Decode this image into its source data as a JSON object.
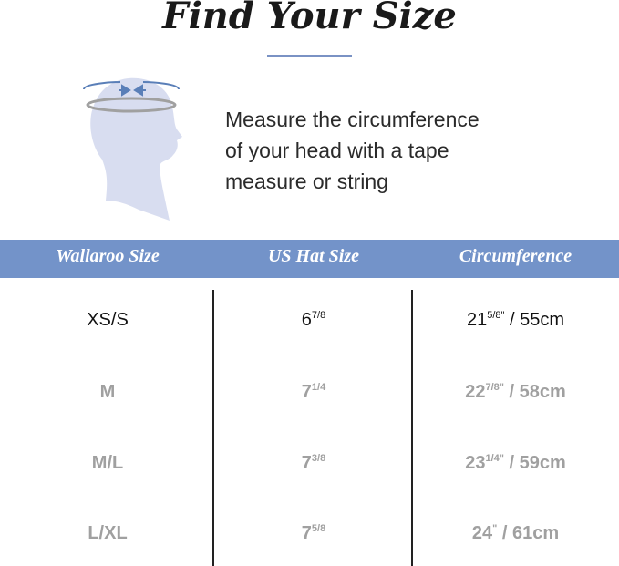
{
  "title": "Find Your Size",
  "instruction": [
    "Measure the circumference",
    "of your head with a tape",
    "measure or string"
  ],
  "colors": {
    "accent": "#7393c9",
    "muted_text": "#a0a0a0"
  },
  "icon": "head-measurement-icon",
  "table": {
    "headers": [
      "Wallaroo Size",
      "US Hat Size",
      "Circumference"
    ],
    "rows": [
      {
        "size": "XS/S",
        "hat_whole": "6",
        "hat_frac": "7/8",
        "circ_whole": "21",
        "circ_frac": "5/8\"",
        "circ_metric": " / 55cm"
      },
      {
        "size": "M",
        "hat_whole": "7",
        "hat_frac": "1/4",
        "circ_whole": "22",
        "circ_frac": "7/8\"",
        "circ_metric": " / 58cm"
      },
      {
        "size": "M/L",
        "hat_whole": "7",
        "hat_frac": "3/8",
        "circ_whole": "23",
        "circ_frac": "1/4\"",
        "circ_metric": " / 59cm"
      },
      {
        "size": "L/XL",
        "hat_whole": "7",
        "hat_frac": "5/8",
        "circ_whole": "24",
        "circ_frac": "\"",
        "circ_metric": " / 61cm"
      }
    ]
  }
}
